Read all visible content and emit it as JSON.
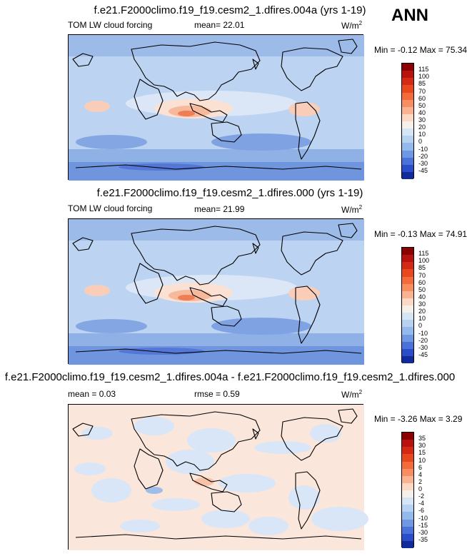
{
  "season": "ANN",
  "units_label": "W/m",
  "units_sup": "2",
  "panels": [
    {
      "title": "f.e21.F2000climo.f19_f19.cesm2_1.dfires.004a (yrs 1-19)",
      "left_label": "TOM LW cloud forcing",
      "mid_label": "mean=  22.01",
      "range_label": "Min =  -0.12 Max =  75.34",
      "colorbar_ticks": [
        "115",
        "100",
        "85",
        "70",
        "60",
        "50",
        "40",
        "30",
        "20",
        "10",
        "0",
        "-10",
        "-20",
        "-30",
        "-45"
      ],
      "colorbar_colors": [
        "#8b0000",
        "#b8120f",
        "#d42a15",
        "#e8481e",
        "#f36a3b",
        "#f88d62",
        "#fbb291",
        "#fdd8c4",
        "#f5f0ea",
        "#d5e5f6",
        "#b7d1f1",
        "#94b9ec",
        "#6e98e4",
        "#4a73d9",
        "#2a4ec9",
        "#112b9b"
      ]
    },
    {
      "title": "f.e21.F2000climo.f19_f19.cesm2_1.dfires.000 (yrs 1-19)",
      "left_label": "TOM LW cloud forcing",
      "mid_label": "mean=  21.99",
      "range_label": "Min =  -0.13 Max =  74.91",
      "colorbar_ticks": [
        "115",
        "100",
        "85",
        "70",
        "60",
        "50",
        "40",
        "30",
        "20",
        "10",
        "0",
        "-10",
        "-20",
        "-30",
        "-45"
      ],
      "colorbar_colors": [
        "#8b0000",
        "#b8120f",
        "#d42a15",
        "#e8481e",
        "#f36a3b",
        "#f88d62",
        "#fbb291",
        "#fdd8c4",
        "#f5f0ea",
        "#d5e5f6",
        "#b7d1f1",
        "#94b9ec",
        "#6e98e4",
        "#4a73d9",
        "#2a4ec9",
        "#112b9b"
      ]
    },
    {
      "title": "f.e21.F2000climo.f19_f19.cesm2_1.dfires.004a - f.e21.F2000climo.f19_f19.cesm2_1.dfires.000",
      "left_label": "mean =   0.03",
      "mid_label": "rmse =   0.59",
      "range_label": "Min =  -3.26 Max =   3.29",
      "colorbar_ticks": [
        "35",
        "30",
        "15",
        "10",
        "6",
        "4",
        "2",
        "0",
        "-2",
        "-4",
        "-6",
        "-10",
        "-15",
        "-30",
        "-35"
      ],
      "colorbar_colors": [
        "#8b0000",
        "#b8120f",
        "#d42a15",
        "#e8481e",
        "#f36a3b",
        "#f88d62",
        "#fbb291",
        "#fdd8c4",
        "#f5f0ea",
        "#d5e5f6",
        "#b7d1f1",
        "#94b9ec",
        "#6e98e4",
        "#4a73d9",
        "#2a4ec9",
        "#112b9b"
      ]
    }
  ],
  "chart_data": [
    {
      "type": "heatmap",
      "title": "f.e21.F2000climo.f19_f19.cesm2_1.dfires.004a (yrs 1-19)",
      "variable": "TOM LW cloud forcing",
      "units": "W/m2",
      "mean": 22.01,
      "min": -0.12,
      "max": 75.34,
      "levels": [
        -45,
        -30,
        -20,
        -10,
        0,
        10,
        20,
        30,
        40,
        50,
        60,
        70,
        85,
        100,
        115
      ]
    },
    {
      "type": "heatmap",
      "title": "f.e21.F2000climo.f19_f19.cesm2_1.dfires.000 (yrs 1-19)",
      "variable": "TOM LW cloud forcing",
      "units": "W/m2",
      "mean": 21.99,
      "min": -0.13,
      "max": 74.91,
      "levels": [
        -45,
        -30,
        -20,
        -10,
        0,
        10,
        20,
        30,
        40,
        50,
        60,
        70,
        85,
        100,
        115
      ]
    },
    {
      "type": "heatmap",
      "title": "f.e21.F2000climo.f19_f19.cesm2_1.dfires.004a - f.e21.F2000climo.f19_f19.cesm2_1.dfires.000",
      "units": "W/m2",
      "mean": 0.03,
      "rmse": 0.59,
      "min": -3.26,
      "max": 3.29,
      "levels": [
        -35,
        -30,
        -15,
        -10,
        -6,
        -4,
        -2,
        0,
        2,
        4,
        6,
        10,
        15,
        30,
        35
      ]
    }
  ]
}
